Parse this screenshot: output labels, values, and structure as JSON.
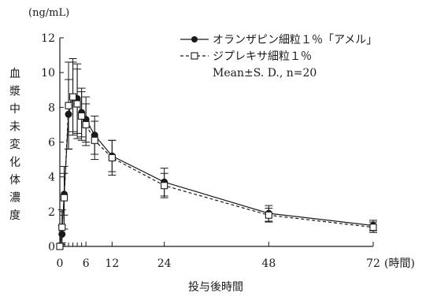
{
  "chart_data": {
    "type": "line",
    "title": "",
    "ylabel": "血漿中未変化体濃度",
    "yunit": "(ng/mL)",
    "xlabel": "投与後時間",
    "xunit": "(時間)",
    "xlim": [
      0,
      72
    ],
    "ylim": [
      0,
      12
    ],
    "x_ticks": [
      0,
      6,
      12,
      24,
      48,
      72
    ],
    "x_tick_labels": [
      "0",
      "6",
      "12",
      "24",
      "48",
      "72"
    ],
    "x_minor_ticks": [
      1,
      2,
      3,
      4,
      5
    ],
    "y_ticks": [
      0,
      2,
      4,
      6,
      8,
      10,
      12
    ],
    "y_tick_labels": [
      "0",
      "2",
      "4",
      "6",
      "8",
      "10",
      "12"
    ],
    "grid": false,
    "legend_position": "top-right",
    "legend_note": "Mean±S. D.,  n=20",
    "series": [
      {
        "name": "オランザピン細粒１％「アメル」",
        "marker": "filled-circle",
        "line": "solid",
        "color": "#1a1a1a",
        "x": [
          0,
          0.5,
          1,
          2,
          3,
          4,
          5,
          6,
          8,
          12,
          24,
          48,
          72
        ],
        "y": [
          0,
          0.7,
          3.0,
          7.6,
          8.6,
          8.5,
          7.7,
          7.3,
          6.4,
          5.2,
          3.7,
          1.9,
          1.2
        ],
        "sd": [
          0,
          0.5,
          1.2,
          2.0,
          2.0,
          2.0,
          1.4,
          1.3,
          1.1,
          0.9,
          0.8,
          0.45,
          0.3
        ]
      },
      {
        "name": "ジプレキサ細粒１％",
        "marker": "open-square",
        "line": "dashed",
        "color": "#1a1a1a",
        "x": [
          0,
          0.5,
          1,
          2,
          3,
          4,
          5,
          6,
          8,
          12,
          24,
          48,
          72
        ],
        "y": [
          0,
          1.1,
          2.8,
          8.1,
          8.6,
          8.2,
          7.5,
          7.0,
          6.1,
          5.1,
          3.5,
          1.8,
          1.1
        ],
        "sd": [
          0,
          1.0,
          1.8,
          2.5,
          2.2,
          2.0,
          1.4,
          1.2,
          1.1,
          1.0,
          0.7,
          0.4,
          0.3
        ]
      }
    ]
  }
}
